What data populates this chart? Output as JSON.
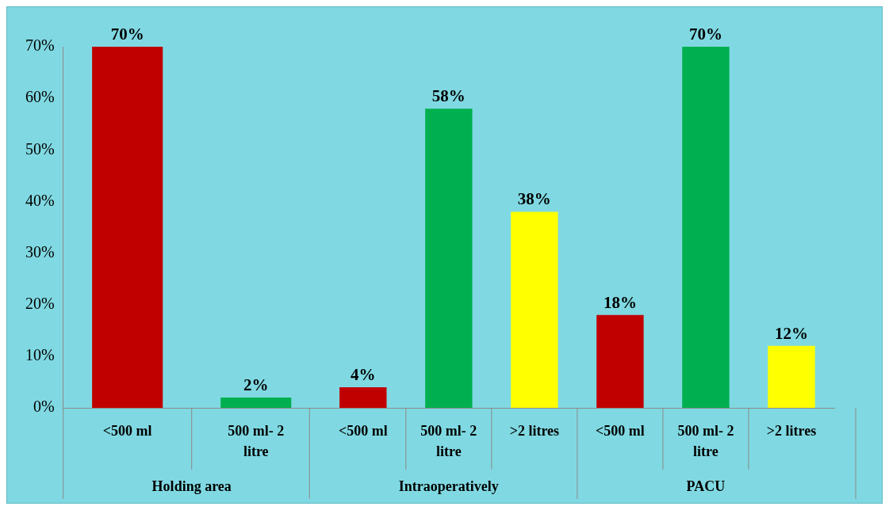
{
  "chart_data": {
    "type": "bar",
    "categories": [
      "Holding area",
      "Intraoperatively",
      "PACU"
    ],
    "series": [
      {
        "name": "<500 ml",
        "color": "#c00000",
        "values": [
          70,
          4,
          18
        ],
        "value_labels": [
          "70%",
          "4%",
          "18%"
        ]
      },
      {
        "name": "500 ml- 2 litre",
        "color": "#00b050",
        "values": [
          2,
          58,
          70
        ],
        "value_labels": [
          "2%",
          "58%",
          "70%"
        ]
      },
      {
        "name": ">2 litres",
        "color": "#ffff00",
        "values": [
          null,
          38,
          12
        ],
        "value_labels": [
          null,
          "38%",
          "12%"
        ]
      }
    ],
    "ylim": [
      0,
      70
    ],
    "yticks": [
      {
        "value": 0,
        "label": "0%"
      },
      {
        "value": 10,
        "label": "10%"
      },
      {
        "value": 20,
        "label": "20%"
      },
      {
        "value": 30,
        "label": "30%"
      },
      {
        "value": 40,
        "label": "40%"
      },
      {
        "value": 50,
        "label": "50%"
      },
      {
        "value": 60,
        "label": "60%"
      },
      {
        "value": 70,
        "label": "70%"
      }
    ],
    "grid": false,
    "legend": false
  }
}
